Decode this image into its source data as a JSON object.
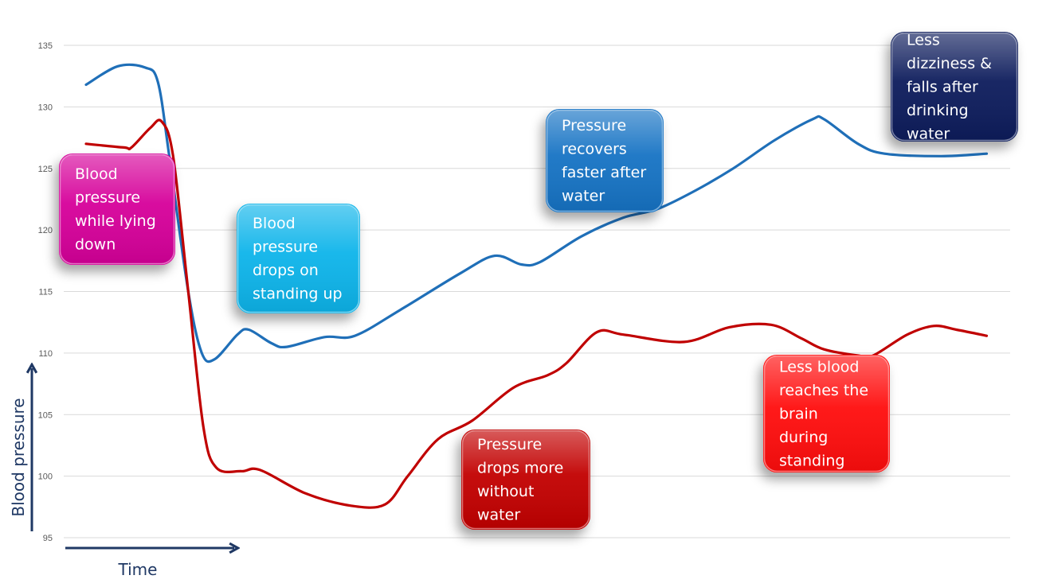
{
  "chart_data": {
    "type": "line",
    "xlabel": "Time",
    "ylabel": "Blood pressure",
    "ylim": [
      95,
      135
    ],
    "yticks": [
      95,
      100,
      105,
      110,
      115,
      120,
      125,
      130,
      135
    ],
    "grid": true,
    "series": [
      {
        "color": "#1f6fb8",
        "points": [
          [
            0,
            131.8
          ],
          [
            0.42,
            133.3
          ],
          [
            0.78,
            133.2
          ],
          [
            0.95,
            132
          ],
          [
            1.1,
            126
          ],
          [
            1.35,
            115
          ],
          [
            1.53,
            110
          ],
          [
            1.7,
            109.5
          ],
          [
            2.0,
            111.5
          ],
          [
            2.15,
            111.9
          ],
          [
            2.45,
            110.8
          ],
          [
            2.65,
            110.5
          ],
          [
            3.15,
            111.3
          ],
          [
            3.55,
            111.4
          ],
          [
            4.15,
            113.5
          ],
          [
            4.95,
            116.5
          ],
          [
            5.4,
            117.9
          ],
          [
            5.75,
            117.2
          ],
          [
            6.0,
            117.4
          ],
          [
            6.55,
            119.5
          ],
          [
            7.1,
            121
          ],
          [
            7.55,
            121.7
          ],
          [
            8.05,
            123.2
          ],
          [
            8.55,
            125
          ],
          [
            9.1,
            127.3
          ],
          [
            9.6,
            129
          ],
          [
            9.75,
            129
          ],
          [
            10.2,
            127
          ],
          [
            10.55,
            126.2
          ],
          [
            11.3,
            126
          ],
          [
            11.9,
            126.2
          ]
        ]
      },
      {
        "color": "#c00000",
        "points": [
          [
            0,
            127
          ],
          [
            0.5,
            126.7
          ],
          [
            0.6,
            126.7
          ],
          [
            0.85,
            128.3
          ],
          [
            1.0,
            128.8
          ],
          [
            1.15,
            126
          ],
          [
            1.35,
            115
          ],
          [
            1.55,
            104
          ],
          [
            1.72,
            100.7
          ],
          [
            2.05,
            100.4
          ],
          [
            2.3,
            100.5
          ],
          [
            2.9,
            98.6
          ],
          [
            3.5,
            97.6
          ],
          [
            3.95,
            97.7
          ],
          [
            4.25,
            100
          ],
          [
            4.65,
            103
          ],
          [
            5.1,
            104.5
          ],
          [
            5.65,
            107.2
          ],
          [
            6.1,
            108.2
          ],
          [
            6.35,
            109.2
          ],
          [
            6.75,
            111.7
          ],
          [
            7.1,
            111.5
          ],
          [
            7.9,
            110.9
          ],
          [
            8.5,
            112.1
          ],
          [
            9.05,
            112.3
          ],
          [
            9.45,
            111.2
          ],
          [
            9.75,
            110.3
          ],
          [
            10.2,
            109.8
          ],
          [
            10.4,
            109.8
          ],
          [
            10.85,
            111.5
          ],
          [
            11.2,
            112.2
          ],
          [
            11.5,
            111.9
          ],
          [
            11.9,
            111.4
          ]
        ]
      }
    ],
    "annotations": [
      {
        "text": "Blood pressure while lying down",
        "lines": [
          "Blood",
          "pressure",
          "while lying",
          "down"
        ],
        "color": "#d6009a"
      },
      {
        "text": "Blood pressure drops on standing up",
        "lines": [
          "Blood",
          "pressure",
          "drops on",
          "standing up"
        ],
        "color": "#10b4ea"
      },
      {
        "text": "Pressure recovers faster after water",
        "lines": [
          "Pressure",
          "recovers",
          "faster after",
          "water"
        ],
        "color": "#1873c4"
      },
      {
        "text": "Less dizziness & falls after drinking water",
        "lines": [
          "Less",
          "dizziness &",
          "falls after",
          "drinking",
          "water"
        ],
        "color": "#0a1f5c"
      },
      {
        "text": "Pressure drops more without water",
        "lines": [
          "Pressure",
          "drops more",
          "without",
          "water"
        ],
        "color": "#c20000"
      },
      {
        "text": "Less blood reaches the brain during standing",
        "lines": [
          "Less blood",
          "reaches the",
          "brain",
          "during",
          "standing"
        ],
        "color": "#ff0a0a"
      }
    ]
  }
}
